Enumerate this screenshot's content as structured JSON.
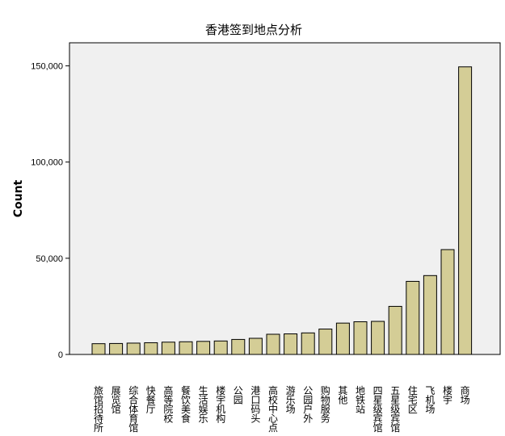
{
  "chart_data": {
    "type": "bar",
    "title": "香港签到地点分析",
    "xlabel": "",
    "ylabel": "Count",
    "ylim": [
      0,
      162000
    ],
    "yticks": [
      0,
      50000,
      100000,
      150000
    ],
    "ytick_labels": [
      "0",
      "50,000",
      "100,000",
      "150,000"
    ],
    "grid": false,
    "bar_color": "#d4cd96",
    "plot_background": "#f0f0f0",
    "categories": [
      "旅馆招待所",
      "展览馆",
      "综合体育馆",
      "快餐厅",
      "高等院校",
      "餐饮美食",
      "生活娱乐",
      "楼宇机构",
      "公园",
      "港口码头",
      "高校中心点",
      "游乐场",
      "公园户外",
      "购物服务",
      "其他",
      "地铁站",
      "四星级宾馆",
      "五星级宾馆",
      "住宅区",
      "飞机场",
      "楼宇",
      "商场"
    ],
    "values": [
      5600,
      5700,
      5900,
      6100,
      6400,
      6600,
      6800,
      7000,
      7800,
      8400,
      10500,
      10700,
      11200,
      13200,
      16300,
      17000,
      17200,
      25000,
      38000,
      41000,
      54500,
      149500
    ]
  }
}
